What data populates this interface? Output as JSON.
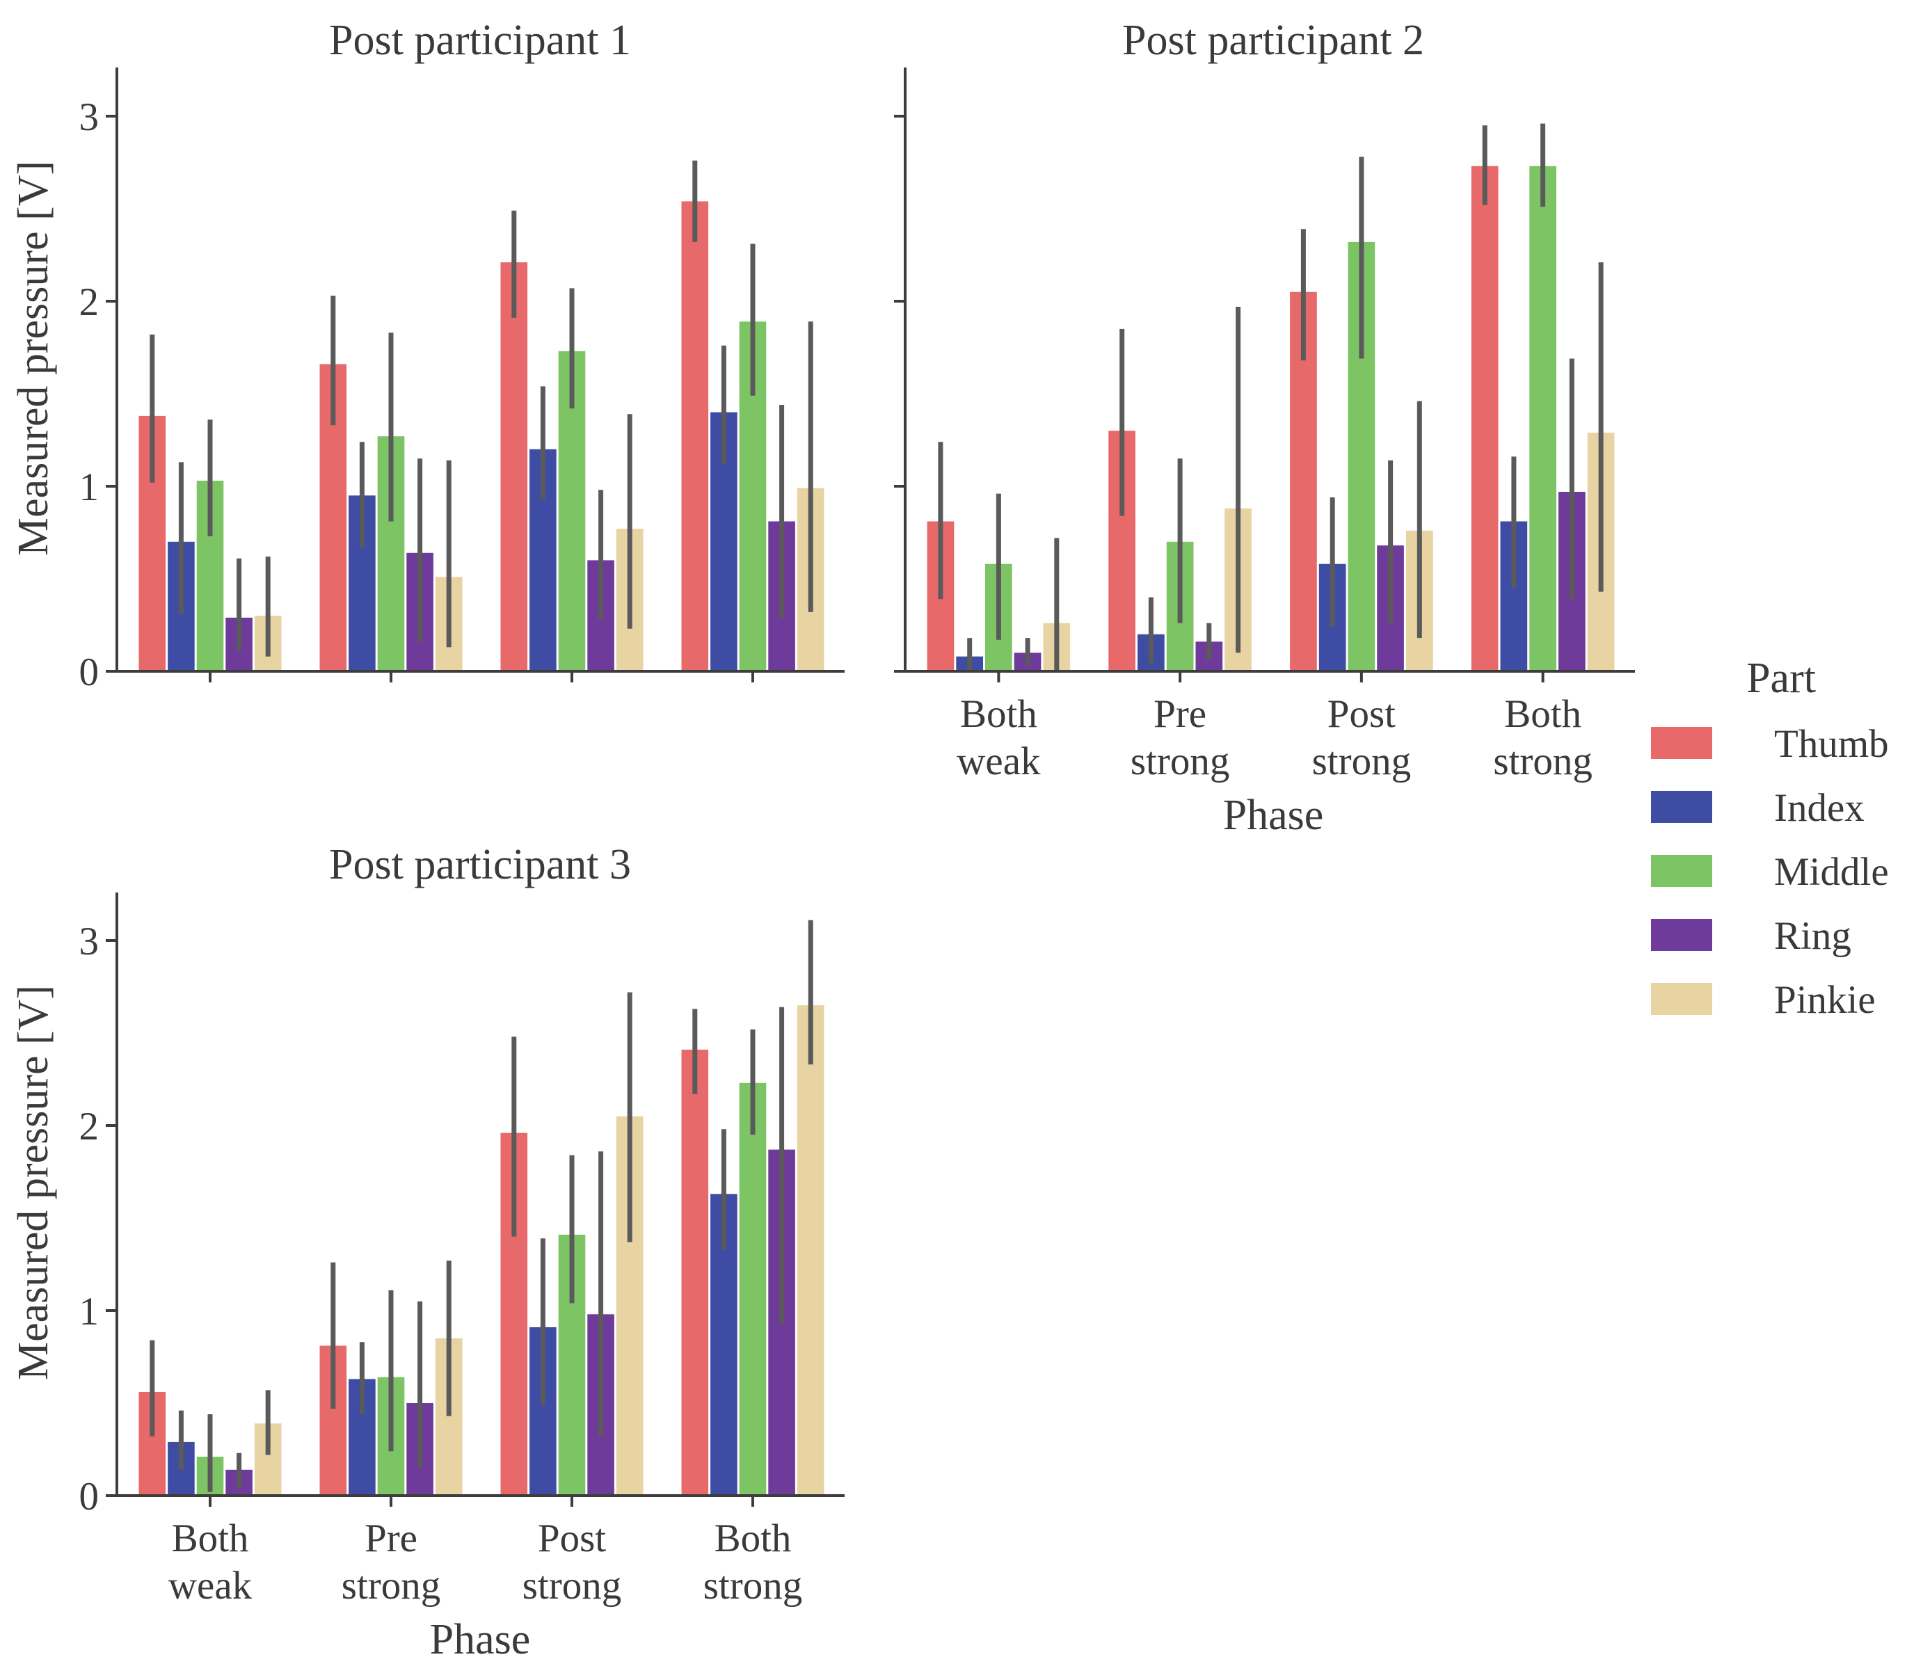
{
  "legend": {
    "title": "Part",
    "items": [
      {
        "label": "Thumb",
        "color": "#e8696a"
      },
      {
        "label": "Index",
        "color": "#3e4ca3"
      },
      {
        "label": "Middle",
        "color": "#7cc464"
      },
      {
        "label": "Ring",
        "color": "#6e3b9a"
      },
      {
        "label": "Pinkie",
        "color": "#e8d3a2"
      }
    ]
  },
  "chart_data": [
    {
      "type": "bar",
      "title": "Post participant 1",
      "categories": [
        "Both weak",
        "Pre strong",
        "Post strong",
        "Both strong"
      ],
      "xlabel": "",
      "ylabel": "Measured pressure [V]",
      "ylim": [
        0,
        3.25
      ],
      "yticks": [
        "0",
        "1",
        "2",
        "3"
      ],
      "series": [
        {
          "name": "Thumb",
          "values": [
            1.38,
            1.66,
            2.21,
            2.54
          ],
          "ci": [
            [
              1.02,
              1.82
            ],
            [
              1.33,
              2.03
            ],
            [
              1.91,
              2.49
            ],
            [
              2.32,
              2.76
            ]
          ]
        },
        {
          "name": "Index",
          "values": [
            0.7,
            0.95,
            1.2,
            1.4
          ],
          "ci": [
            [
              0.31,
              1.13
            ],
            [
              0.67,
              1.24
            ],
            [
              0.93,
              1.54
            ],
            [
              1.12,
              1.76
            ]
          ]
        },
        {
          "name": "Middle",
          "values": [
            1.03,
            1.27,
            1.73,
            1.89
          ],
          "ci": [
            [
              0.73,
              1.36
            ],
            [
              0.81,
              1.83
            ],
            [
              1.42,
              2.07
            ],
            [
              1.49,
              2.31
            ]
          ]
        },
        {
          "name": "Ring",
          "values": [
            0.29,
            0.64,
            0.6,
            0.81
          ],
          "ci": [
            [
              0.11,
              0.61
            ],
            [
              0.16,
              1.15
            ],
            [
              0.28,
              0.98
            ],
            [
              0.29,
              1.44
            ]
          ]
        },
        {
          "name": "Pinkie",
          "values": [
            0.3,
            0.51,
            0.77,
            0.99
          ],
          "ci": [
            [
              0.08,
              0.62
            ],
            [
              0.13,
              1.14
            ],
            [
              0.23,
              1.39
            ],
            [
              0.32,
              1.89
            ]
          ]
        }
      ]
    },
    {
      "type": "bar",
      "title": "Post participant 2",
      "categories": [
        "Both weak",
        "Pre strong",
        "Post strong",
        "Both strong"
      ],
      "xlabel": "Phase",
      "ylabel": "",
      "ylim": [
        0,
        3.25
      ],
      "yticks": [
        "0",
        "1",
        "2",
        "3"
      ],
      "series": [
        {
          "name": "Thumb",
          "values": [
            0.81,
            1.3,
            2.05,
            2.73
          ],
          "ci": [
            [
              0.39,
              1.24
            ],
            [
              0.84,
              1.85
            ],
            [
              1.68,
              2.39
            ],
            [
              2.52,
              2.95
            ]
          ]
        },
        {
          "name": "Index",
          "values": [
            0.08,
            0.2,
            0.58,
            0.81
          ],
          "ci": [
            [
              0.0,
              0.18
            ],
            [
              0.04,
              0.4
            ],
            [
              0.24,
              0.94
            ],
            [
              0.45,
              1.16
            ]
          ]
        },
        {
          "name": "Middle",
          "values": [
            0.58,
            0.7,
            2.32,
            2.73
          ],
          "ci": [
            [
              0.17,
              0.96
            ],
            [
              0.26,
              1.15
            ],
            [
              1.69,
              2.78
            ],
            [
              2.51,
              2.96
            ]
          ]
        },
        {
          "name": "Ring",
          "values": [
            0.1,
            0.16,
            0.68,
            0.97
          ],
          "ci": [
            [
              0.03,
              0.18
            ],
            [
              0.06,
              0.26
            ],
            [
              0.26,
              1.14
            ],
            [
              0.39,
              1.69
            ]
          ]
        },
        {
          "name": "Pinkie",
          "values": [
            0.26,
            0.88,
            0.76,
            1.29
          ],
          "ci": [
            [
              0.0,
              0.72
            ],
            [
              0.1,
              1.97
            ],
            [
              0.18,
              1.46
            ],
            [
              0.43,
              2.21
            ]
          ]
        }
      ]
    },
    {
      "type": "bar",
      "title": "Post participant 3",
      "categories": [
        "Both weak",
        "Pre strong",
        "Post strong",
        "Both strong"
      ],
      "xlabel": "Phase",
      "ylabel": "Measured pressure [V]",
      "ylim": [
        0,
        3.25
      ],
      "yticks": [
        "0",
        "1",
        "2",
        "3"
      ],
      "series": [
        {
          "name": "Thumb",
          "values": [
            0.56,
            0.81,
            1.96,
            2.41
          ],
          "ci": [
            [
              0.32,
              0.84
            ],
            [
              0.47,
              1.26
            ],
            [
              1.4,
              2.48
            ],
            [
              2.17,
              2.63
            ]
          ]
        },
        {
          "name": "Index",
          "values": [
            0.29,
            0.63,
            0.91,
            1.63
          ],
          "ci": [
            [
              0.14,
              0.46
            ],
            [
              0.44,
              0.83
            ],
            [
              0.49,
              1.39
            ],
            [
              1.33,
              1.98
            ]
          ]
        },
        {
          "name": "Middle",
          "values": [
            0.21,
            0.64,
            1.41,
            2.23
          ],
          "ci": [
            [
              0.02,
              0.44
            ],
            [
              0.24,
              1.11
            ],
            [
              1.04,
              1.84
            ],
            [
              1.95,
              2.52
            ]
          ]
        },
        {
          "name": "Ring",
          "values": [
            0.14,
            0.5,
            0.98,
            1.87
          ],
          "ci": [
            [
              0.04,
              0.23
            ],
            [
              0.15,
              1.05
            ],
            [
              0.32,
              1.86
            ],
            [
              0.93,
              2.64
            ]
          ]
        },
        {
          "name": "Pinkie",
          "values": [
            0.39,
            0.85,
            2.05,
            2.65
          ],
          "ci": [
            [
              0.22,
              0.57
            ],
            [
              0.43,
              1.27
            ],
            [
              1.37,
              2.72
            ],
            [
              2.33,
              3.11
            ]
          ]
        }
      ]
    }
  ]
}
